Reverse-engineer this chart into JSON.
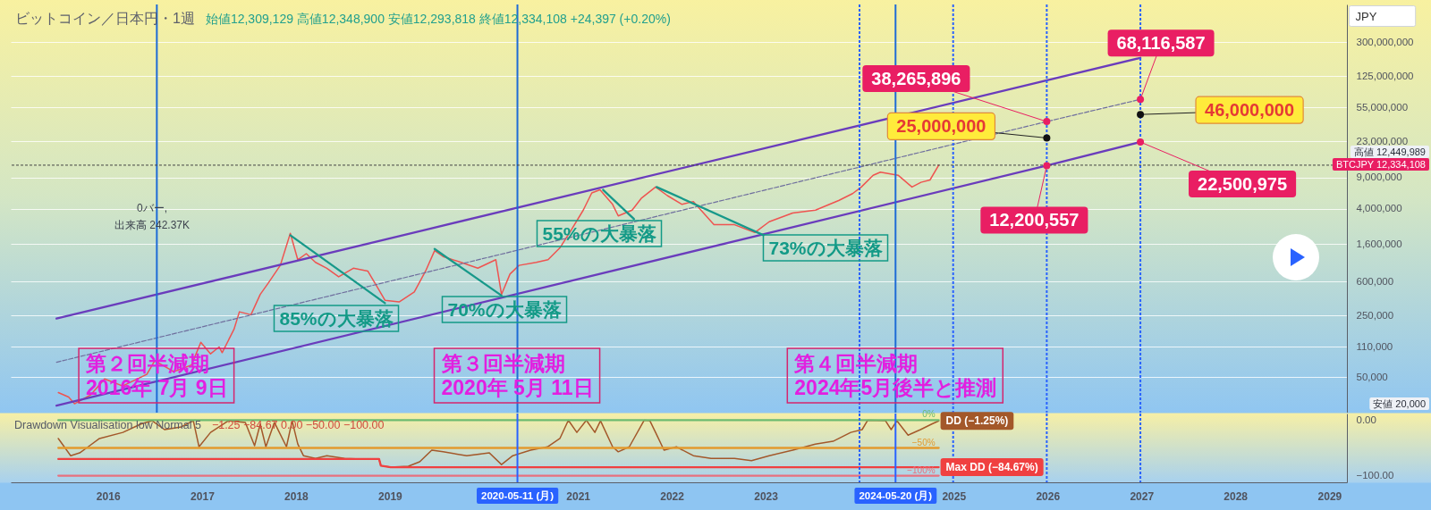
{
  "chart_data": [
    {
      "type": "line",
      "title": "ビットコイン／日本円・1週",
      "subtitle": "始値12,309,129 高値12,348,900 安値12,293,818 終値12,334,108 +24,397 (+0.20%)",
      "ylabel": "JPY",
      "log": "y",
      "xlim": [
        "2014-12-19",
        "2029-03-10"
      ],
      "ylim": [
        20000,
        800000000
      ],
      "yticks": [
        {
          "value": 50000,
          "label": "50,000"
        },
        {
          "value": 110000,
          "label": "110,000"
        },
        {
          "value": 250000,
          "label": "250,000"
        },
        {
          "value": 600000,
          "label": "600,000"
        },
        {
          "value": 1600000,
          "label": "1,600,000"
        },
        {
          "value": 4000000,
          "label": "4,000,000"
        },
        {
          "value": 9000000,
          "label": "9,000,000"
        },
        {
          "value": 23000000,
          "label": "23,000,000"
        },
        {
          "value": 55000000,
          "label": "55,000,000"
        },
        {
          "value": 125000000,
          "label": "125,000,000"
        },
        {
          "value": 300000000,
          "label": "300,000,000"
        }
      ],
      "tick_labels": "y",
      "grid": "y",
      "series": [
        {
          "color": "#ef5350",
          "x": [
            "2015-06-22",
            "2015-08-01",
            "2015-08-24",
            "2015-10-27",
            "2015-12-19",
            "2016-02-27",
            "2016-05-31",
            "2016-07-01",
            "2016-09-13",
            "2016-11-21",
            "2016-12-27",
            "2017-02-03",
            "2017-03-08",
            "2017-03-20",
            "2017-05-05",
            "2017-05-26",
            "2017-07-10",
            "2017-08-15",
            "2017-09-16",
            "2017-11-01",
            "2017-12-10",
            "2018-01-08",
            "2018-02-10",
            "2018-03-18",
            "2018-05-01",
            "2018-06-16",
            "2018-08-12",
            "2018-10-07",
            "2018-11-10",
            "2018-12-13",
            "2019-02-06",
            "2019-04-06",
            "2019-05-20",
            "2019-06-24",
            "2019-07-27",
            "2019-10-05",
            "2019-12-09",
            "2020-02-17",
            "2020-03-10",
            "2020-04-12",
            "2020-05-17",
            "2020-07-23",
            "2020-09-07",
            "2020-10-23",
            "2020-12-05",
            "2021-01-22",
            "2021-02-24",
            "2021-03-28",
            "2021-05-16",
            "2021-06-07",
            "2021-07-31",
            "2021-09-04",
            "2021-10-30",
            "2021-12-15",
            "2022-02-10",
            "2022-03-26",
            "2022-06-14",
            "2022-09-02",
            "2022-11-20",
            "2023-01-15",
            "2023-04-16",
            "2023-07-14",
            "2023-10-12",
            "2023-12-05",
            "2024-01-08",
            "2024-02-23",
            "2024-03-22",
            "2024-05-30",
            "2024-07-23",
            "2024-08-27",
            "2024-10-01",
            "2024-11-04"
          ],
          "values": [
            33700,
            30000,
            25200,
            31900,
            48000,
            40000,
            54000,
            77000,
            58000,
            69000,
            124000,
            92000,
            110000,
            95000,
            174000,
            274000,
            254000,
            430000,
            582000,
            915000,
            2100000,
            1060000,
            1240000,
            990000,
            850000,
            680000,
            850000,
            790000,
            540000,
            370000,
            354000,
            460000,
            790000,
            1340000,
            1150000,
            990000,
            850000,
            1060000,
            430000,
            730000,
            915000,
            990000,
            1060000,
            1440000,
            2260000,
            3840000,
            6000000,
            6500000,
            4460000,
            3300000,
            3840000,
            5200000,
            7000000,
            5600000,
            4460000,
            4800000,
            2630000,
            2630000,
            2150000,
            2840000,
            3560000,
            3840000,
            4930000,
            5900000,
            7000000,
            9500000,
            10300000,
            9500000,
            7000000,
            7900000,
            8400000,
            12334108
          ]
        },
        {
          "color": "#6a3cbc",
          "x": [
            "2015-06-15",
            "2026-12-28"
          ],
          "values": [
            230000,
            200000000
          ]
        },
        {
          "color": "#6a3cbc",
          "x": [
            "2015-06-15",
            "2025-12-29",
            "2026-12-28"
          ],
          "values": [
            24000,
            12200557,
            22500975
          ]
        },
        {
          "color": "#6f6f9e",
          "line_style": "dashed",
          "x": [
            "2015-06-15",
            "2025-12-29",
            "2026-12-28"
          ],
          "values": [
            74000,
            38265896,
            68116587
          ]
        },
        {
          "color": "#17998a",
          "x": [
            "2017-12-10",
            "2018-12-13"
          ],
          "values": [
            2000000,
            343000
          ]
        },
        {
          "color": "#17998a",
          "x": [
            "2019-06-24",
            "2020-03-10"
          ],
          "values": [
            1400000,
            418000
          ]
        },
        {
          "color": "#17998a",
          "x": [
            "2021-04-09",
            "2021-08-07"
          ],
          "values": [
            6500000,
            3050000
          ]
        },
        {
          "color": "#17998a",
          "x": [
            "2021-11-03",
            "2022-12-24"
          ],
          "values": [
            7000000,
            2000000
          ]
        },
        {
          "type": "scatter",
          "color": "#e91e63",
          "x": [
            "2025-12-29",
            "2025-12-29",
            "2026-12-28",
            "2026-12-28"
          ],
          "values": [
            38265896,
            12200557,
            68116587,
            22500975
          ]
        },
        {
          "type": "scatter",
          "color": "#111111",
          "x": [
            "2025-12-29",
            "2026-12-28"
          ],
          "values": [
            25000000,
            46000000
          ]
        }
      ],
      "ref_lines": [
        {
          "axis": "x",
          "value": "2016-07-09",
          "label": "第２回半減期\n2016年 7月 9日",
          "color": "#1e6bd6"
        },
        {
          "axis": "x",
          "value": "2020-05-11",
          "label": "第３回半減期\n2020年 5月 11日",
          "color": "#1e6bd6"
        },
        {
          "axis": "x",
          "value": "2024-05-20",
          "label": "第４回半減期\n2024年5月後半と推測",
          "color": "#1e6bd6"
        },
        {
          "axis": "x",
          "value": "2024-01-01",
          "color": "#2962ff",
          "line_style": "dotted"
        },
        {
          "axis": "x",
          "value": "2024-12-30",
          "color": "#2962ff",
          "line_style": "dotted"
        },
        {
          "axis": "x",
          "value": "2025-12-29",
          "color": "#2962ff",
          "line_style": "dotted"
        },
        {
          "axis": "x",
          "value": "2026-12-28",
          "color": "#2962ff",
          "line_style": "dotted"
        },
        {
          "axis": "y",
          "value": 12334108,
          "label": "BTCJPY 12,334,108",
          "color": "#444444",
          "line_style": "dotted"
        }
      ],
      "annotations": [
        {
          "text": "38,265,896",
          "x": "2025-12-29",
          "y": 38265896
        },
        {
          "text": "25,000,000",
          "x": "2025-12-29",
          "y": 25000000
        },
        {
          "text": "12,200,557",
          "x": "2025-12-29",
          "y": 12200557
        },
        {
          "text": "68,116,587",
          "x": "2026-12-28",
          "y": 68116587
        },
        {
          "text": "46,000,000",
          "x": "2026-12-28",
          "y": 46000000
        },
        {
          "text": "22,500,975",
          "x": "2026-12-28",
          "y": 22500975
        },
        "85%の大暴落",
        "70%の大暴落",
        "55%の大暴落",
        "73%の大暴落",
        "高値 12,449,989",
        "安値 20,000",
        "0バー,\n出来高 242.37K"
      ]
    },
    {
      "type": "line",
      "title": "Drawdown Visualisation low Normal 5",
      "subtitle": "−1.25 −84.67 0.00 −50.00 −100.00",
      "xlim": [
        "2014-12-19",
        "2029-03-10"
      ],
      "xticks": [
        "2016",
        "2017",
        "2018",
        "2019",
        "2021",
        "2022",
        "2023",
        "2025",
        "2026",
        "2027",
        "2028",
        "2029"
      ],
      "ylim": [
        -112,
        12
      ],
      "yticks": [
        {
          "value": 0,
          "label": "0.00"
        },
        {
          "value": -100,
          "label": "−100.00"
        }
      ],
      "series": [
        {
          "color": "#a3582a",
          "x": [
            "2015-06-22",
            "2015-08-09",
            "2015-09-13",
            "2015-10-16",
            "2015-11-29",
            "2016-02-28",
            "2016-05-08",
            "2016-06-21",
            "2016-08-08",
            "2016-10-12",
            "2016-11-28",
            "2016-12-20",
            "2017-02-03",
            "2017-04-13",
            "2017-06-18",
            "2017-07-24",
            "2017-08-15",
            "2017-09-06",
            "2017-10-09",
            "2017-11-25",
            "2017-12-17",
            "2018-01-08",
            "2018-01-30",
            "2018-03-18",
            "2018-05-01",
            "2018-07-09",
            "2018-09-13",
            "2018-11-20",
            "2018-11-27",
            "2019-01-04",
            "2019-03-14",
            "2019-04-27",
            "2019-06-13",
            "2019-07-27",
            "2019-10-27",
            "2020-01-23",
            "2020-03-10",
            "2020-04-23",
            "2020-07-01",
            "2020-09-05",
            "2020-10-23",
            "2020-11-25",
            "2020-12-28",
            "2021-02-03",
            "2021-03-08",
            "2021-03-30",
            "2021-05-16",
            "2021-06-07",
            "2021-07-20",
            "2021-09-16",
            "2021-10-08",
            "2021-10-30",
            "2021-12-02",
            "2022-01-19",
            "2022-03-26",
            "2022-06-03",
            "2022-09-02",
            "2022-11-07",
            "2023-01-15",
            "2023-04-16",
            "2023-07-13",
            "2023-09-20",
            "2023-11-28",
            "2024-01-11",
            "2024-02-02",
            "2024-04-11",
            "2024-05-03",
            "2024-05-25",
            "2024-07-08",
            "2024-08-25",
            "2024-10-08",
            "2024-11-04"
          ],
          "values": [
            -33,
            -64,
            -59,
            -48,
            -33,
            -22,
            -7,
            -1,
            -17,
            -12,
            -1,
            -48,
            -22,
            -1,
            -4,
            -46,
            -7,
            -48,
            -4,
            -48,
            -1,
            -43,
            -64,
            -69,
            -64,
            -69,
            -70,
            -70,
            -82,
            -84.67,
            -83,
            -75,
            -54,
            -57,
            -64,
            -59,
            -80,
            -64,
            -54,
            -48,
            -33,
            0,
            -22,
            0,
            -22,
            -1,
            -48,
            -57,
            -48,
            0,
            -1,
            -22,
            -54,
            -48,
            -64,
            -69,
            -69,
            -73,
            -64,
            -54,
            -43,
            -38,
            -22,
            -17,
            0,
            -1,
            -17,
            -1,
            -27,
            -17,
            -7,
            -1.25
          ],
          "value_labels": [
            null,
            null,
            null,
            null,
            null,
            null,
            null,
            null,
            null,
            null,
            null,
            null,
            null,
            null,
            null,
            null,
            null,
            null,
            null,
            null,
            null,
            null,
            null,
            null,
            null,
            null,
            null,
            null,
            null,
            null,
            null,
            null,
            null,
            null,
            null,
            null,
            null,
            null,
            null,
            null,
            null,
            null,
            null,
            null,
            null,
            null,
            null,
            null,
            null,
            null,
            null,
            null,
            null,
            null,
            null,
            null,
            null,
            null,
            null,
            null,
            null,
            null,
            null,
            null,
            null,
            null,
            null,
            null,
            null,
            null,
            null,
            "DD (−1.25%)"
          ]
        },
        {
          "color": "#f04040",
          "x": [
            "2015-06-22",
            "2018-11-20",
            "2018-11-27",
            "2019-01-04",
            "2024-11-04"
          ],
          "values": [
            -70,
            -70,
            -82,
            -84.67,
            -84.67
          ],
          "value_labels": [
            null,
            null,
            null,
            null,
            "Max DD (−84.67%)"
          ]
        },
        {
          "color": "#6dbb70",
          "x": [
            "2015-06-22",
            "2024-11-04"
          ],
          "values": [
            0,
            0
          ],
          "value_labels": [
            null,
            "0%"
          ]
        },
        {
          "color": "#e39a2e",
          "x": [
            "2015-06-22",
            "2024-11-04"
          ],
          "values": [
            -50,
            -50
          ],
          "value_labels": [
            null,
            "−50%"
          ]
        },
        {
          "color": "#e8707e",
          "x": [
            "2015-06-22",
            "2024-11-04"
          ],
          "values": [
            -100,
            -100
          ],
          "value_labels": [
            null,
            "−100%"
          ]
        }
      ],
      "ref_lines": [
        {
          "axis": "x",
          "value": "2020-05-11",
          "label": "2020-05-11 (月)",
          "color": "#2962ff"
        },
        {
          "axis": "x",
          "value": "2024-05-20",
          "label": "2024-05-20 (月)",
          "color": "#2962ff"
        },
        {
          "axis": "x",
          "value": "2024-01-01",
          "color": "#2962ff",
          "line_style": "dotted"
        },
        {
          "axis": "x",
          "value": "2024-12-30",
          "color": "#2962ff",
          "line_style": "dotted"
        },
        {
          "axis": "x",
          "value": "2025-12-29",
          "color": "#2962ff",
          "line_style": "dotted"
        },
        {
          "axis": "x",
          "value": "2026-12-28",
          "color": "#2962ff",
          "line_style": "dotted"
        }
      ]
    }
  ]
}
